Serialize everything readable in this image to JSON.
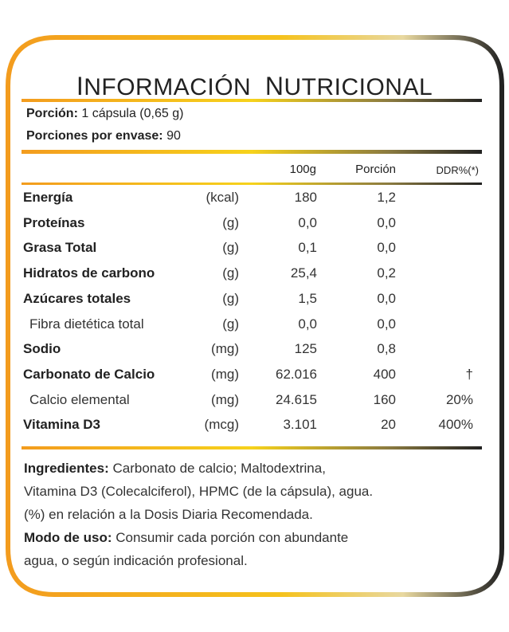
{
  "label": {
    "title_first_letter": "I",
    "title_rest": "NFORMACIÓN",
    "title_second_first_letter": "N",
    "title_second_rest": "UTRICIONAL",
    "portion_label": "Porción:",
    "portion_value": "1 cápsula (0,65 g)",
    "servings_label": "Porciones por envase:",
    "servings_value": "90",
    "col_100g": "100g",
    "col_portion": "Porción",
    "col_ddr": "DDR%(*)"
  },
  "rows": [
    {
      "name": "Energía",
      "unit": "(kcal)",
      "v100": "180",
      "vpor": "1,2",
      "ddr": ""
    },
    {
      "name": "Proteínas",
      "unit": "(g)",
      "v100": "0,0",
      "vpor": "0,0",
      "ddr": ""
    },
    {
      "name": "Grasa Total",
      "unit": "(g)",
      "v100": "0,1",
      "vpor": "0,0",
      "ddr": ""
    },
    {
      "name": "Hidratos de carbono",
      "unit": "(g)",
      "v100": "25,4",
      "vpor": "0,2",
      "ddr": ""
    },
    {
      "name": "Azúcares totales",
      "unit": "(g)",
      "v100": "1,5",
      "vpor": "0,0",
      "ddr": ""
    },
    {
      "name": "Fibra dietética total",
      "unit": "(g)",
      "v100": "0,0",
      "vpor": "0,0",
      "ddr": ""
    },
    {
      "name": "Sodio",
      "unit": "(mg)",
      "v100": "125",
      "vpor": "0,8",
      "ddr": ""
    },
    {
      "name": "Carbonato de Calcio",
      "unit": "(mg)",
      "v100": "62.016",
      "vpor": "400",
      "ddr": "†"
    },
    {
      "name": "Calcio elemental",
      "unit": "(mg)",
      "v100": "24.615",
      "vpor": "160",
      "ddr": "20%"
    },
    {
      "name": "Vitamina D3",
      "unit": "(mcg)",
      "v100": "3.101",
      "vpor": "20",
      "ddr": "400%"
    }
  ],
  "footer": {
    "ingredients_label": "Ingredientes:",
    "ingredients_line1": "Carbonato de calcio; Maltodextrina,",
    "ingredients_line2": "Vitamina D3 (Colecalciferol), HPMC (de la cápsula), agua.",
    "note_line": "(%) en relación a la Dosis Diaria Recomendada.",
    "usage_label": "Modo de uso:",
    "usage_line1": "Consumir cada porción con abundante",
    "usage_line2": "agua, o según indicación profesional."
  },
  "colors": {
    "border_gradient_start": "#f39c1e",
    "border_gradient_mid": "#f6d21c",
    "border_dark": "#222222",
    "text": "#222222"
  }
}
